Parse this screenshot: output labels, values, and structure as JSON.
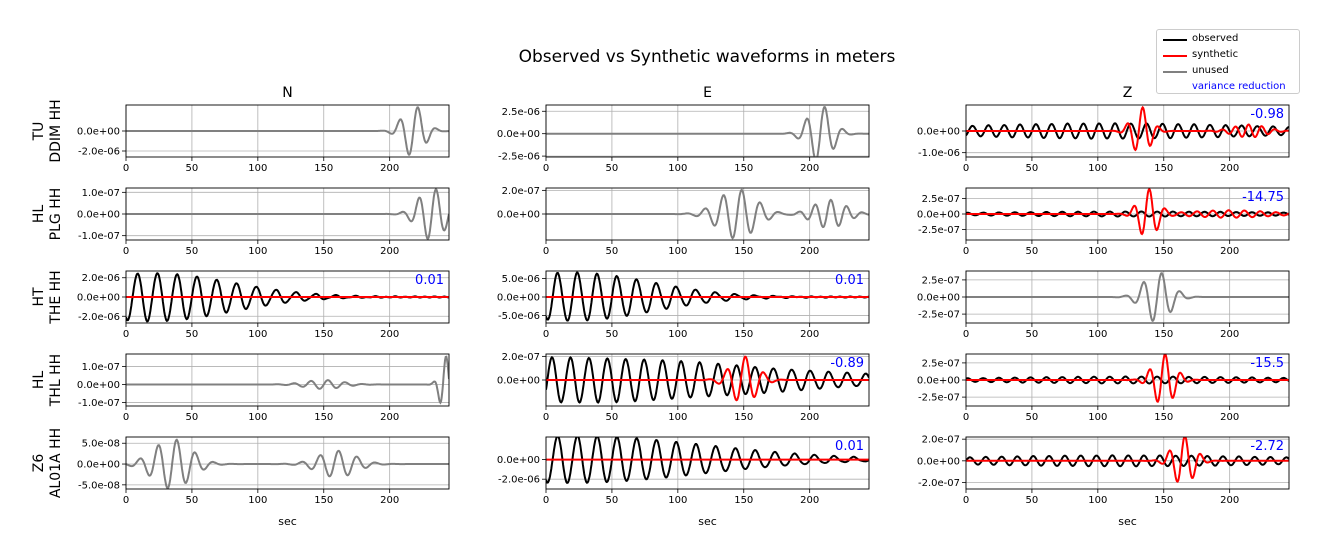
{
  "title": "Observed vs Synthetic waveforms in meters",
  "legend": {
    "position": "top-right",
    "items": [
      {
        "label": "observed",
        "color": "#000000"
      },
      {
        "label": "synthetic",
        "color": "#ff0000"
      },
      {
        "label": "unused",
        "color": "#808080"
      },
      {
        "label": "variance reduction",
        "color": "#0000ff"
      }
    ]
  },
  "chart_data": {
    "type": "line",
    "title": "Observed vs Synthetic waveforms in meters",
    "xlabel": "sec",
    "xlim": [
      0,
      245
    ],
    "x_ticks": [
      "0",
      "50",
      "100",
      "150",
      "200"
    ],
    "grid": true,
    "components": [
      "N",
      "E",
      "Z"
    ],
    "stations": [
      "TU\nDDIM HH",
      "HL\nPLG HH",
      "HT\nTHE HH",
      "HL\nTHL HH",
      "Z6\nAL01A HH"
    ],
    "panels": [
      {
        "station": "TU DDIM HH",
        "component": "N",
        "used": false,
        "variance_reduction": "",
        "ylim": [
          -2.6e-06,
          2.6e-06
        ],
        "y_ticks": [
          "0.0e+00",
          "-2.0e-06"
        ],
        "packets": [
          {
            "t0": 218,
            "width": 8,
            "period": 14,
            "amp": 2.6e-06,
            "color": "unused"
          }
        ]
      },
      {
        "station": "TU DDIM HH",
        "component": "E",
        "used": false,
        "variance_reduction": "",
        "ylim": [
          -2.6e-06,
          3.2e-06
        ],
        "y_ticks": [
          "2.5e-06",
          "0.0e+00",
          "-2.5e-06"
        ],
        "packets": [
          {
            "t0": 208,
            "width": 9,
            "period": 14,
            "amp": 3.2e-06,
            "color": "unused"
          }
        ]
      },
      {
        "station": "TU DDIM HH",
        "component": "Z",
        "used": true,
        "variance_reduction": "-0.98",
        "ylim": [
          -1.2e-06,
          1.2e-06
        ],
        "y_ticks": [
          "0.0e+00",
          "-1.0e-06"
        ],
        "packets": [
          {
            "t0": 110,
            "width": 120,
            "period": 12,
            "amp": 3.5e-07,
            "color": "observed"
          },
          {
            "t0": 133,
            "width": 7,
            "period": 12,
            "amp": 1.1e-06,
            "color": "synthetic"
          },
          {
            "t0": 215,
            "width": 12,
            "period": 10,
            "amp": 3e-07,
            "color": "synthetic"
          }
        ]
      },
      {
        "station": "HL PLG HH",
        "component": "N",
        "used": false,
        "variance_reduction": "",
        "ylim": [
          -1.2e-07,
          1.2e-07
        ],
        "y_ticks": [
          "1.0e-07",
          "0.0e+00",
          "-1.0e-07"
        ],
        "packets": [
          {
            "t0": 232,
            "width": 10,
            "period": 13,
            "amp": 1.2e-07,
            "color": "unused"
          }
        ]
      },
      {
        "station": "HL PLG HH",
        "component": "E",
        "used": false,
        "variance_reduction": "",
        "ylim": [
          -2.2e-07,
          2.2e-07
        ],
        "y_ticks": [
          "2.0e-07",
          "0.0e+00"
        ],
        "packets": [
          {
            "t0": 145,
            "width": 14,
            "period": 14,
            "amp": 2.1e-07,
            "color": "unused"
          },
          {
            "t0": 215,
            "width": 12,
            "period": 12,
            "amp": 1.2e-07,
            "color": "unused"
          }
        ]
      },
      {
        "station": "HL PLG HH",
        "component": "Z",
        "used": true,
        "variance_reduction": "-14.75",
        "ylim": [
          -4.2e-07,
          4.2e-07
        ],
        "y_ticks": [
          "2.5e-07",
          "0.0e+00",
          "-2.5e-07"
        ],
        "packets": [
          {
            "t0": 130,
            "width": 110,
            "period": 12,
            "amp": 4e-08,
            "color": "observed"
          },
          {
            "t0": 138,
            "width": 7,
            "period": 12,
            "amp": 4e-07,
            "color": "synthetic"
          },
          {
            "t0": 200,
            "width": 30,
            "period": 12,
            "amp": 6e-08,
            "color": "synthetic"
          }
        ]
      },
      {
        "station": "HT THE HH",
        "component": "N",
        "used": true,
        "variance_reduction": "0.01",
        "ylim": [
          -2.7e-06,
          2.7e-06
        ],
        "y_ticks": [
          "2.0e-06",
          "0.0e+00",
          "-2.0e-06"
        ],
        "packets": [
          {
            "t0": 20,
            "width": 60,
            "period": 15,
            "amp": 2.5e-06,
            "color": "observed"
          }
        ]
      },
      {
        "station": "HT THE HH",
        "component": "E",
        "used": true,
        "variance_reduction": "0.01",
        "ylim": [
          -7e-06,
          7e-06
        ],
        "y_ticks": [
          "5.0e-06",
          "0.0e+00",
          "-5.0e-06"
        ],
        "packets": [
          {
            "t0": 20,
            "width": 60,
            "period": 15,
            "amp": 6.5e-06,
            "color": "observed"
          }
        ]
      },
      {
        "station": "HT THE HH",
        "component": "Z",
        "used": false,
        "variance_reduction": "",
        "ylim": [
          -3.8e-07,
          3.8e-07
        ],
        "y_ticks": [
          "2.5e-07",
          "0.0e+00",
          "-2.5e-07"
        ],
        "packets": [
          {
            "t0": 145,
            "width": 10,
            "period": 14,
            "amp": 3.7e-07,
            "color": "unused"
          }
        ]
      },
      {
        "station": "HL THL HH",
        "component": "N",
        "used": false,
        "variance_reduction": "",
        "ylim": [
          -1.2e-07,
          1.7e-07
        ],
        "y_ticks": [
          "1.0e-07",
          "0.0e+00",
          "-1.0e-07"
        ],
        "packets": [
          {
            "t0": 150,
            "width": 14,
            "period": 13,
            "amp": 2.5e-08,
            "color": "unused"
          },
          {
            "t0": 242,
            "width": 4,
            "period": 10,
            "amp": 1.6e-07,
            "color": "unused"
          }
        ]
      },
      {
        "station": "HL THL HH",
        "component": "E",
        "used": true,
        "variance_reduction": "-0.89",
        "ylim": [
          -2.2e-07,
          2.2e-07
        ],
        "y_ticks": [
          "2.0e-07",
          "0.0e+00"
        ],
        "packets": [
          {
            "t0": 15,
            "width": 140,
            "period": 14,
            "amp": 1.9e-07,
            "color": "observed"
          },
          {
            "t0": 150,
            "width": 10,
            "period": 14,
            "amp": 2e-07,
            "color": "synthetic"
          }
        ]
      },
      {
        "station": "HL THL HH",
        "component": "Z",
        "used": true,
        "variance_reduction": "-15.5",
        "ylim": [
          -3.8e-07,
          3.8e-07
        ],
        "y_ticks": [
          "2.5e-07",
          "0.0e+00",
          "-2.5e-07"
        ],
        "packets": [
          {
            "t0": 130,
            "width": 110,
            "period": 12,
            "amp": 5e-08,
            "color": "observed"
          },
          {
            "t0": 150,
            "width": 8,
            "period": 12,
            "amp": 3.8e-07,
            "color": "synthetic"
          }
        ]
      },
      {
        "station": "Z6 AL01A HH",
        "component": "N",
        "used": false,
        "variance_reduction": "",
        "ylim": [
          -6e-08,
          6.5e-08
        ],
        "y_ticks": [
          "5.0e-08",
          "0.0e+00",
          "-5.0e-08"
        ],
        "packets": [
          {
            "t0": 35,
            "width": 14,
            "period": 14,
            "amp": 6e-08,
            "color": "unused"
          },
          {
            "t0": 160,
            "width": 14,
            "period": 14,
            "amp": 3.2e-08,
            "color": "unused"
          }
        ]
      },
      {
        "station": "Z6 AL01A HH",
        "component": "E",
        "used": true,
        "variance_reduction": "0.01",
        "ylim": [
          -3e-06,
          2.3e-06
        ],
        "y_ticks": [
          "0.0e+00",
          "-2.0e-06"
        ],
        "packets": [
          {
            "t0": 20,
            "width": 100,
            "period": 15,
            "amp": 2.4e-06,
            "color": "observed"
          }
        ]
      },
      {
        "station": "Z6 AL01A HH",
        "component": "Z",
        "used": true,
        "variance_reduction": "-2.72",
        "ylim": [
          -2.6e-07,
          2.2e-07
        ],
        "y_ticks": [
          "2.0e-07",
          "0.0e+00",
          "-2.0e-07"
        ],
        "packets": [
          {
            "t0": 120,
            "width": 130,
            "period": 12,
            "amp": 5e-08,
            "color": "observed"
          },
          {
            "t0": 165,
            "width": 8,
            "period": 12,
            "amp": 2.3e-07,
            "color": "synthetic"
          }
        ]
      }
    ]
  }
}
